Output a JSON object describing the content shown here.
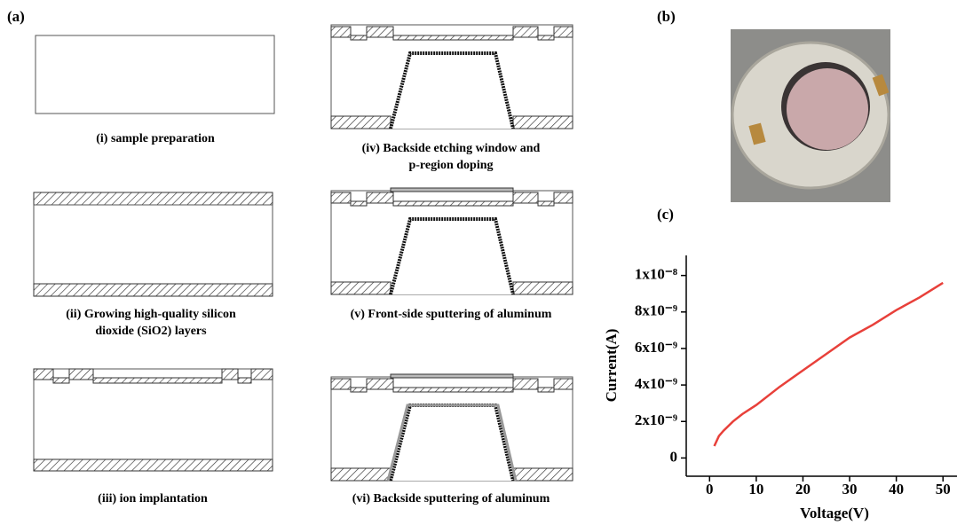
{
  "figure": {
    "panel_a": {
      "label": "(a)",
      "steps": [
        {
          "caption": [
            "(i) sample preparation"
          ]
        },
        {
          "caption": [
            "(ii) Growing high-quality silicon",
            "dioxide (SiO2) layers"
          ]
        },
        {
          "caption": [
            "(iii) ion implantation"
          ]
        },
        {
          "caption": [
            "(iv) Backside etching window and",
            "p-region doping"
          ]
        },
        {
          "caption": [
            "(v) Front-side sputtering of aluminum"
          ]
        },
        {
          "caption": [
            "(vi) Backside sputtering of aluminum"
          ]
        }
      ]
    },
    "panel_b": {
      "label": "(b)"
    },
    "panel_c": {
      "label": "(c)"
    }
  },
  "chart_data": {
    "type": "line",
    "xlabel": "Voltage(V)",
    "ylabel": "Current(A)",
    "x": [
      1,
      2,
      3,
      5,
      7,
      10,
      15,
      20,
      25,
      30,
      35,
      40,
      45,
      50
    ],
    "values": [
      6.5e-10,
      1.2e-09,
      1.5e-09,
      2e-09,
      2.4e-09,
      2.9e-09,
      3.9e-09,
      4.8e-09,
      5.7e-09,
      6.6e-09,
      7.3e-09,
      8.1e-09,
      8.8e-09,
      9.6e-09
    ],
    "color": "#e8403a",
    "xlim": [
      -5,
      53
    ],
    "ylim": [
      -1e-09,
      1.11e-08
    ],
    "xticks": [
      0,
      10,
      20,
      30,
      40,
      50
    ],
    "yticks": [
      0,
      {
        "value": 2e-09,
        "label": "2x10⁻⁹"
      },
      {
        "value": 4e-09,
        "label": "4x10⁻⁹"
      },
      {
        "value": 6e-09,
        "label": "6x10⁻⁹"
      },
      {
        "value": 8e-09,
        "label": "8x10⁻⁹"
      },
      {
        "value": 1e-08,
        "label": "1x10⁻⁸"
      }
    ]
  }
}
